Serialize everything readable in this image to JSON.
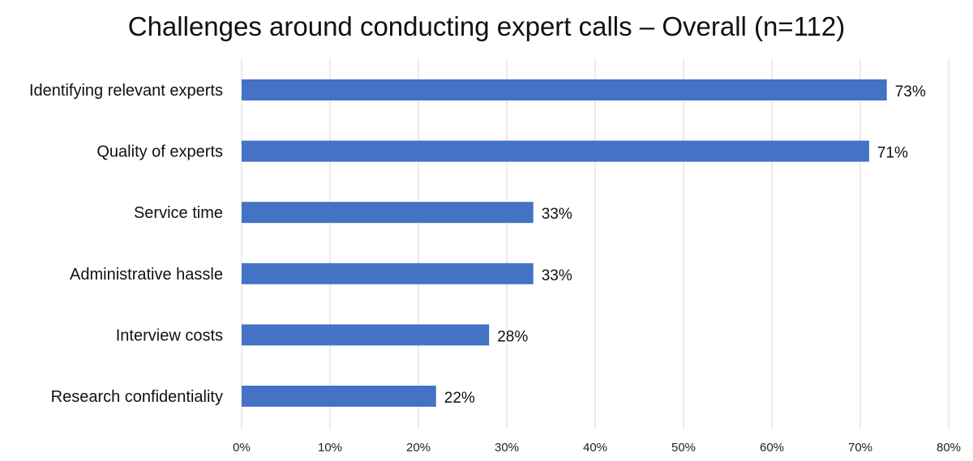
{
  "chart_data": {
    "type": "bar",
    "orientation": "horizontal",
    "title": "Challenges around conducting expert calls – Overall (n=112)",
    "xlabel": "",
    "ylabel": "",
    "categories": [
      "Identifying relevant experts",
      "Quality of experts",
      "Service time",
      "Administrative hassle",
      "Interview costs",
      "Research confidentiality"
    ],
    "values": [
      73,
      71,
      33,
      33,
      28,
      22
    ],
    "value_labels": [
      "73%",
      "71%",
      "33%",
      "33%",
      "28%",
      "22%"
    ],
    "xlim": [
      0,
      80
    ],
    "x_ticks": [
      0,
      10,
      20,
      30,
      40,
      50,
      60,
      70,
      80
    ],
    "x_tick_labels": [
      "0%",
      "10%",
      "20%",
      "30%",
      "40%",
      "50%",
      "60%",
      "70%",
      "80%"
    ],
    "bar_color": "#4472C4",
    "grid": true,
    "legend": "none"
  }
}
